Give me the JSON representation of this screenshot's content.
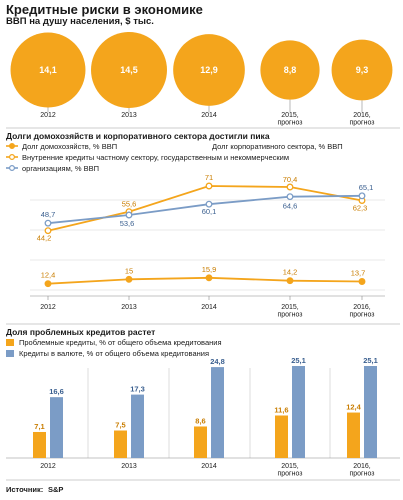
{
  "title": "Кредитные риски в экономике",
  "subtitle": "ВВП на душу населения, $ тыс.",
  "source_label": "Источник:",
  "source_value": "S&P",
  "colors": {
    "orange": "#F4A51C",
    "blue": "#7B9CC6",
    "grid": "#999999"
  },
  "chart_data": [
    {
      "type": "bubble",
      "categories": [
        "2012",
        "2013",
        "2014",
        "2015,\nпрогноз",
        "2016,\nпрогноз"
      ],
      "values": [
        14.1,
        14.5,
        12.9,
        8.8,
        9.3
      ],
      "labels": [
        "14,1",
        "14,5",
        "12,9",
        "8,8",
        "9,3"
      ]
    },
    {
      "type": "line",
      "title": "Долги домохозяйств и корпоративного сектора достигли пика",
      "categories": [
        "2012",
        "2013",
        "2014",
        "2015,\nпрогноз",
        "2016,\nпрогноз"
      ],
      "series": [
        {
          "name": "Долг домохозяйств, % ВВП",
          "color": "#F4A51C",
          "style": "filled-marker",
          "values": [
            12.4,
            15,
            15.9,
            14.2,
            13.7
          ],
          "labels": [
            "12,4",
            "15",
            "15,9",
            "14,2",
            "13,7"
          ]
        },
        {
          "name": "Долг корпоративного сектора, % ВВП",
          "color": "#F4A51C",
          "style": "hollow-marker",
          "values": [
            44.2,
            55.6,
            71,
            70.4,
            62.3
          ],
          "labels": [
            "44,2",
            "55,6",
            "71",
            "70,4",
            "62,3"
          ]
        },
        {
          "name": "Внутренние кредиты частному сектору, государственным и некоммерческим организациям, % ВВП",
          "color": "#7B9CC6",
          "style": "hollow-marker",
          "values": [
            48.7,
            53.6,
            60.1,
            64.6,
            65.1
          ],
          "labels": [
            "48,7",
            "53,6",
            "60,1",
            "64,6",
            "65,1"
          ]
        }
      ]
    },
    {
      "type": "bar",
      "title": "Доля проблемных кредитов растет",
      "categories": [
        "2012",
        "2013",
        "2014",
        "2015,\nпрогноз",
        "2016,\nпрогноз"
      ],
      "series": [
        {
          "name": "Проблемные кредиты, % от общего объема кредитования",
          "color": "#F4A51C",
          "values": [
            7.1,
            7.5,
            8.6,
            11.6,
            12.4
          ],
          "labels": [
            "7,1",
            "7,5",
            "8,6",
            "11,6",
            "12,4"
          ]
        },
        {
          "name": "Кредиты в валюте, % от общего объема кредитования",
          "color": "#7B9CC6",
          "values": [
            16.6,
            17.3,
            24.8,
            25.1,
            25.1
          ],
          "labels": [
            "16,6",
            "17,3",
            "24,8",
            "25,1",
            "25,1"
          ]
        }
      ]
    }
  ]
}
